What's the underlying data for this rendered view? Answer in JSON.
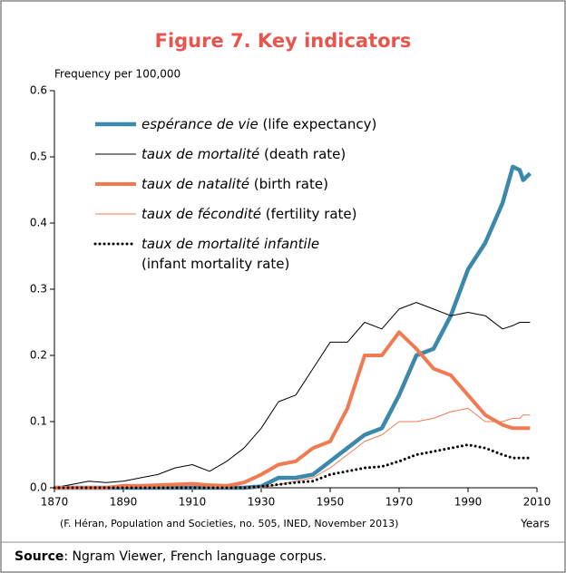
{
  "chart_data": {
    "type": "line",
    "title": "Figure 7. Key indicators",
    "ylabel": "Frequency per 100,000",
    "xlabel": "Years",
    "credit": "(F. Héran, Population and Societies, no. 505, INED, November 2013)",
    "source": "Source: Ngram Viewer, French language corpus.",
    "x": [
      1870,
      1875,
      1880,
      1885,
      1890,
      1895,
      1900,
      1905,
      1910,
      1915,
      1920,
      1925,
      1930,
      1935,
      1940,
      1945,
      1950,
      1955,
      1960,
      1965,
      1970,
      1975,
      1980,
      1985,
      1990,
      1995,
      2000,
      2003,
      2005,
      2006,
      2008
    ],
    "series": [
      {
        "name": "espérance de vie (life expectancy)",
        "color": "#3b88aa",
        "width": 4.5,
        "style": "solid",
        "values": [
          0,
          0,
          0,
          0,
          0,
          0,
          0,
          0,
          0,
          0,
          0,
          0,
          0.002,
          0.015,
          0.015,
          0.02,
          0.04,
          0.06,
          0.08,
          0.09,
          0.14,
          0.2,
          0.21,
          0.26,
          0.33,
          0.37,
          0.43,
          0.485,
          0.48,
          0.465,
          0.475
        ]
      },
      {
        "name": "taux de mortalité (death rate)",
        "color": "#000000",
        "width": 1,
        "style": "solid",
        "values": [
          0,
          0.005,
          0.01,
          0.008,
          0.01,
          0.015,
          0.02,
          0.03,
          0.035,
          0.025,
          0.04,
          0.06,
          0.09,
          0.13,
          0.14,
          0.18,
          0.22,
          0.22,
          0.25,
          0.24,
          0.27,
          0.28,
          0.27,
          0.26,
          0.265,
          0.26,
          0.24,
          0.245,
          0.25,
          0.25,
          0.25
        ]
      },
      {
        "name": "taux de natalité (birth rate)",
        "color": "#f07a52",
        "width": 4,
        "style": "solid",
        "values": [
          0,
          0,
          0,
          0,
          0.003,
          0.003,
          0.004,
          0.005,
          0.006,
          0.004,
          0.003,
          0.008,
          0.02,
          0.035,
          0.04,
          0.06,
          0.07,
          0.12,
          0.2,
          0.2,
          0.235,
          0.21,
          0.18,
          0.17,
          0.14,
          0.11,
          0.095,
          0.09,
          0.09,
          0.09,
          0.09
        ]
      },
      {
        "name": "taux de fécondité (fertility rate)",
        "color": "#f07a52",
        "width": 1,
        "style": "solid",
        "values": [
          0,
          0,
          0,
          0,
          0,
          0,
          0,
          0,
          0,
          0,
          0,
          0,
          0,
          0.005,
          0.01,
          0.015,
          0.03,
          0.05,
          0.07,
          0.08,
          0.1,
          0.1,
          0.105,
          0.115,
          0.12,
          0.1,
          0.1,
          0.105,
          0.105,
          0.11,
          0.11
        ]
      },
      {
        "name": "taux de mortalité infantile (infant mortality rate)",
        "color": "#000000",
        "width": 3,
        "style": "dotted",
        "values": [
          0,
          0,
          0,
          0,
          0,
          0,
          0,
          0,
          0,
          0,
          0,
          0,
          0.002,
          0.005,
          0.008,
          0.01,
          0.02,
          0.025,
          0.03,
          0.032,
          0.04,
          0.05,
          0.055,
          0.06,
          0.065,
          0.06,
          0.05,
          0.045,
          0.045,
          0.045,
          0.045
        ]
      }
    ],
    "xlim": [
      1870,
      2010
    ],
    "xticks": [
      1870,
      1890,
      1910,
      1930,
      1950,
      1970,
      1990,
      2010
    ],
    "ylim": [
      0,
      0.6
    ],
    "yticks": [
      {
        "value": 0,
        "label": "0.0"
      },
      0.1,
      0.2,
      0.3,
      0.4,
      0.5,
      0.6
    ],
    "grid": false
  }
}
